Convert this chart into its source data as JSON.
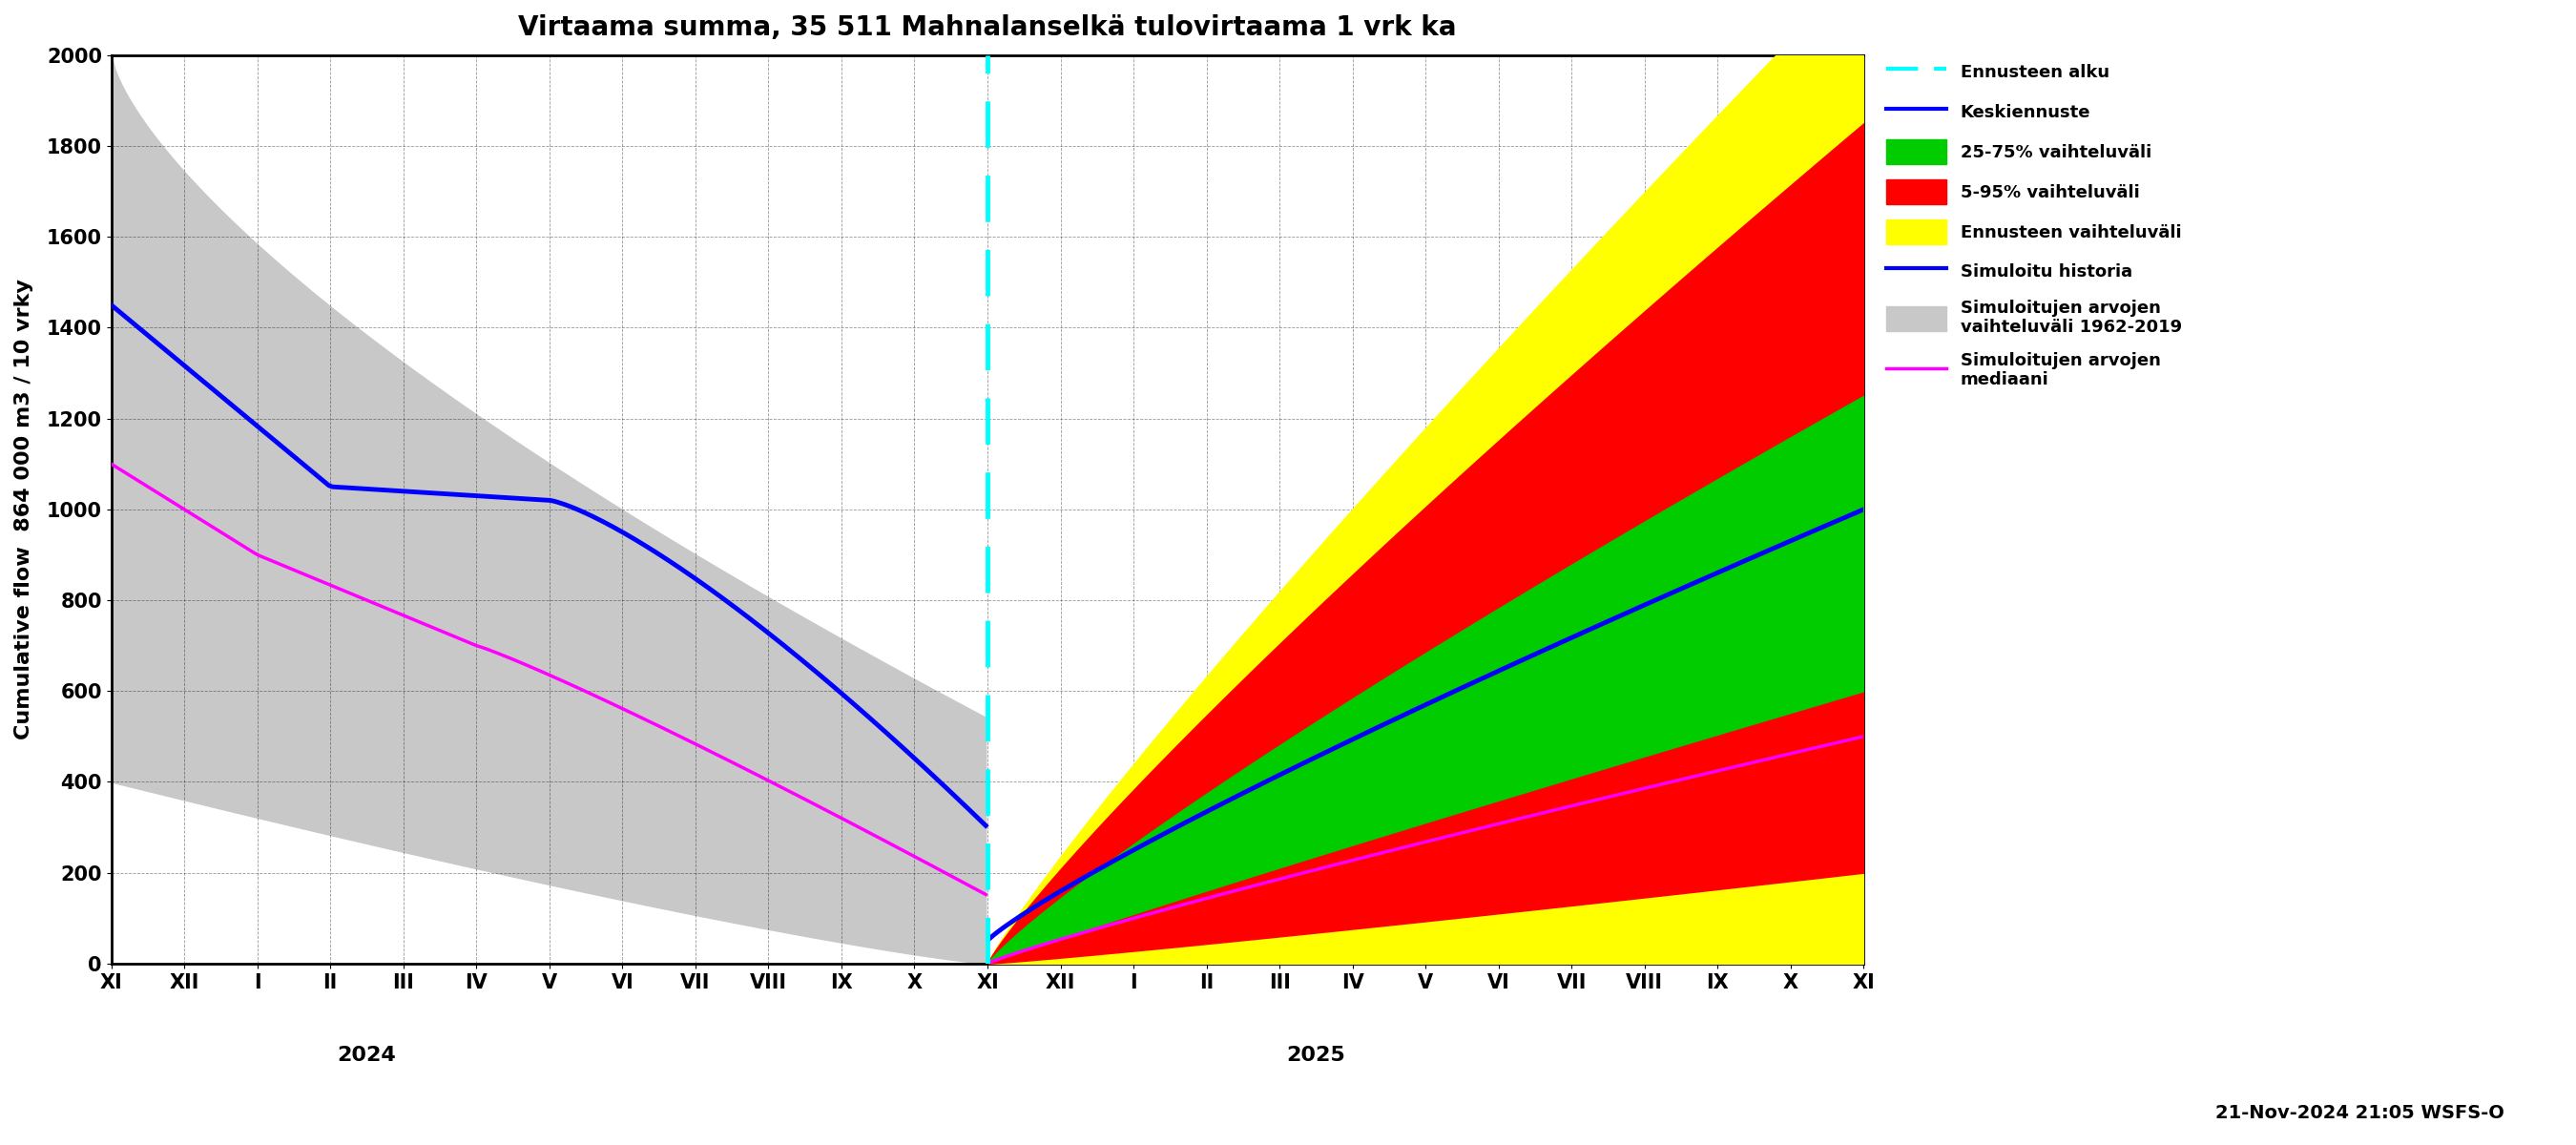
{
  "title": "Virtaama summa, 35 511 Mahnalanselkä tulovirtaama 1 vrk ka",
  "ylabel": "Cumulative flow  864 000 m3 / 10 vrky",
  "ylim": [
    0,
    2000
  ],
  "yticks": [
    0,
    200,
    400,
    600,
    800,
    1000,
    1200,
    1400,
    1600,
    1800,
    2000
  ],
  "background_color": "#ffffff",
  "forecast_x": 12,
  "timestamp_text": "21-Nov-2024 21:05 WSFS-O",
  "x_tick_labels": [
    "XI",
    "XII",
    "I",
    "II",
    "III",
    "IV",
    "V",
    "VI",
    "VII",
    "VIII",
    "IX",
    "X",
    "XI",
    "XII",
    "I",
    "II",
    "III",
    "IV",
    "V",
    "VI",
    "VII",
    "VIII",
    "IX",
    "X",
    "XI"
  ],
  "x_tick_positions": [
    0,
    1,
    2,
    3,
    4,
    5,
    6,
    7,
    8,
    9,
    10,
    11,
    12,
    13,
    14,
    15,
    16,
    17,
    18,
    19,
    20,
    21,
    22,
    23,
    24
  ],
  "year_labels": [
    {
      "text": "2024",
      "x": 3.5
    },
    {
      "text": "2025",
      "x": 16.5
    }
  ],
  "title_fontsize": 20,
  "axis_fontsize": 16,
  "tick_fontsize": 15,
  "legend_fontsize": 13
}
